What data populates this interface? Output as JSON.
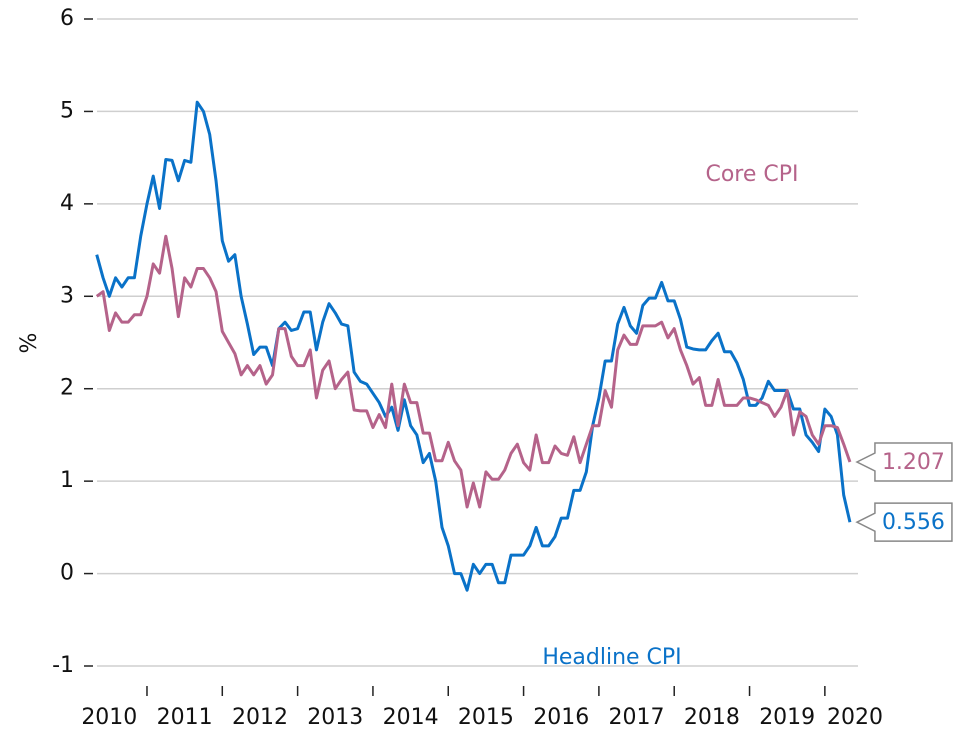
{
  "chart_data": {
    "type": "line",
    "ylabel": "%",
    "ylim": [
      -1,
      6
    ],
    "yticks": [
      -1,
      0,
      1,
      2,
      3,
      4,
      5,
      6
    ],
    "xlim": [
      2010.217,
      2020.44
    ],
    "xtick_marks": [
      2011,
      2012,
      2013,
      2014,
      2015,
      2016,
      2017,
      2018,
      2019,
      2020
    ],
    "xticks": [
      {
        "value": 2010.5,
        "label": "2010"
      },
      {
        "value": 2011.5,
        "label": "2011"
      },
      {
        "value": 2012.5,
        "label": "2012"
      },
      {
        "value": 2013.5,
        "label": "2013"
      },
      {
        "value": 2014.5,
        "label": "2014"
      },
      {
        "value": 2015.5,
        "label": "2015"
      },
      {
        "value": 2016.5,
        "label": "2016"
      },
      {
        "value": 2017.5,
        "label": "2017"
      },
      {
        "value": 2018.5,
        "label": "2018"
      },
      {
        "value": 2019.5,
        "label": "2019"
      },
      {
        "value": 2020.4,
        "label": "2020"
      }
    ],
    "grid": true,
    "x": [
      2010.333,
      2010.417,
      2010.5,
      2010.583,
      2010.667,
      2010.75,
      2010.833,
      2010.917,
      2011.0,
      2011.083,
      2011.167,
      2011.25,
      2011.333,
      2011.417,
      2011.5,
      2011.583,
      2011.667,
      2011.75,
      2011.833,
      2011.917,
      2012.0,
      2012.083,
      2012.167,
      2012.25,
      2012.333,
      2012.417,
      2012.5,
      2012.583,
      2012.667,
      2012.75,
      2012.833,
      2012.917,
      2013.0,
      2013.083,
      2013.167,
      2013.25,
      2013.333,
      2013.417,
      2013.5,
      2013.583,
      2013.667,
      2013.75,
      2013.833,
      2013.917,
      2014.0,
      2014.083,
      2014.167,
      2014.25,
      2014.333,
      2014.417,
      2014.5,
      2014.583,
      2014.667,
      2014.75,
      2014.833,
      2014.917,
      2015.0,
      2015.083,
      2015.167,
      2015.25,
      2015.333,
      2015.417,
      2015.5,
      2015.583,
      2015.667,
      2015.75,
      2015.833,
      2015.917,
      2016.0,
      2016.083,
      2016.167,
      2016.25,
      2016.333,
      2016.417,
      2016.5,
      2016.583,
      2016.667,
      2016.75,
      2016.833,
      2016.917,
      2017.0,
      2017.083,
      2017.167,
      2017.25,
      2017.333,
      2017.417,
      2017.5,
      2017.583,
      2017.667,
      2017.75,
      2017.833,
      2017.917,
      2018.0,
      2018.083,
      2018.167,
      2018.25,
      2018.333,
      2018.417,
      2018.5,
      2018.583,
      2018.667,
      2018.75,
      2018.833,
      2018.917,
      2019.0,
      2019.083,
      2019.167,
      2019.25,
      2019.333,
      2019.417,
      2019.5,
      2019.583,
      2019.667,
      2019.75,
      2019.833,
      2019.917,
      2020.0,
      2020.083,
      2020.167,
      2020.25,
      2020.333
    ],
    "series": [
      {
        "name": "Headline CPI",
        "color": "#0a72c8",
        "label_pos": "bottom",
        "values": [
          3.45,
          3.2,
          3.0,
          3.2,
          3.1,
          3.2,
          3.2,
          3.65,
          4.0,
          4.3,
          3.95,
          4.48,
          4.47,
          4.25,
          4.47,
          4.45,
          5.1,
          5.0,
          4.75,
          4.25,
          3.6,
          3.38,
          3.45,
          3.0,
          2.7,
          2.37,
          2.45,
          2.45,
          2.25,
          2.65,
          2.72,
          2.63,
          2.65,
          2.83,
          2.83,
          2.42,
          2.72,
          2.92,
          2.82,
          2.7,
          2.68,
          2.18,
          2.08,
          2.05,
          1.95,
          1.85,
          1.7,
          1.8,
          1.55,
          1.88,
          1.6,
          1.5,
          1.2,
          1.3,
          1.0,
          0.5,
          0.3,
          0.0,
          0.0,
          -0.18,
          0.1,
          0.0,
          0.1,
          0.1,
          -0.1,
          -0.1,
          0.2,
          0.2,
          0.2,
          0.3,
          0.5,
          0.3,
          0.3,
          0.4,
          0.6,
          0.6,
          0.9,
          0.9,
          1.1,
          1.6,
          1.9,
          2.3,
          2.3,
          2.7,
          2.88,
          2.68,
          2.6,
          2.9,
          2.98,
          2.98,
          3.15,
          2.95,
          2.95,
          2.75,
          2.45,
          2.43,
          2.42,
          2.42,
          2.52,
          2.6,
          2.4,
          2.4,
          2.28,
          2.1,
          1.82,
          1.82,
          1.9,
          2.08,
          1.98,
          1.98,
          1.98,
          1.78,
          1.78,
          1.5,
          1.42,
          1.32,
          1.78,
          1.7,
          1.5,
          0.85,
          0.556
        ]
      },
      {
        "name": "Core CPI",
        "color": "#b5638a",
        "label_pos": "top",
        "values": [
          3.0,
          3.05,
          2.63,
          2.82,
          2.72,
          2.72,
          2.8,
          2.8,
          3.0,
          3.35,
          3.25,
          3.65,
          3.3,
          2.78,
          3.2,
          3.1,
          3.3,
          3.3,
          3.2,
          3.05,
          2.62,
          2.5,
          2.38,
          2.15,
          2.25,
          2.15,
          2.25,
          2.05,
          2.15,
          2.65,
          2.65,
          2.35,
          2.25,
          2.25,
          2.42,
          1.9,
          2.2,
          2.3,
          2.0,
          2.1,
          2.18,
          1.77,
          1.76,
          1.76,
          1.58,
          1.72,
          1.58,
          2.05,
          1.6,
          2.05,
          1.85,
          1.85,
          1.52,
          1.52,
          1.22,
          1.22,
          1.42,
          1.22,
          1.12,
          0.72,
          0.98,
          0.72,
          1.1,
          1.02,
          1.02,
          1.12,
          1.3,
          1.4,
          1.2,
          1.12,
          1.5,
          1.2,
          1.2,
          1.38,
          1.3,
          1.28,
          1.48,
          1.2,
          1.4,
          1.6,
          1.6,
          1.98,
          1.8,
          2.42,
          2.58,
          2.48,
          2.48,
          2.68,
          2.68,
          2.68,
          2.72,
          2.55,
          2.65,
          2.42,
          2.25,
          2.05,
          2.12,
          1.82,
          1.82,
          2.1,
          1.82,
          1.82,
          1.82,
          1.9,
          1.9,
          1.88,
          1.85,
          1.82,
          1.7,
          1.8,
          1.98,
          1.5,
          1.75,
          1.7,
          1.5,
          1.4,
          1.6,
          1.6,
          1.58,
          1.4,
          1.207
        ]
      }
    ]
  }
}
